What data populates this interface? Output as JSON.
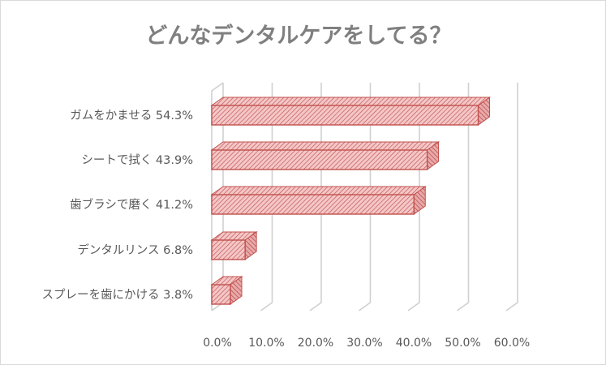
{
  "chart_data": {
    "type": "bar",
    "orientation": "horizontal",
    "style": "3d-clustered",
    "title": "どんなデンタルケアをしてる？",
    "categories": [
      "ガムをかませる 54.3%",
      "シートで拭く 43.9%",
      "歯ブラシで磨く 41.2%",
      "デンタルリンス 6.8%",
      "スプレーを歯にかける 3.8%"
    ],
    "values": [
      54.3,
      43.9,
      41.2,
      6.8,
      3.8
    ],
    "xticks": [
      "0.0%",
      "10.0%",
      "20.0%",
      "30.0%",
      "40.0%",
      "50.0%",
      "60.0%"
    ],
    "xlim": [
      0,
      60
    ],
    "grid": true,
    "legend": "none",
    "colors": {
      "bar_fill": "#f4c7c7",
      "bar_hatch": "#c0504d",
      "bar_edge": "#c0504d",
      "gridline": "#d0d0d0",
      "text": "#595959",
      "title": "#7f7f7f"
    }
  }
}
